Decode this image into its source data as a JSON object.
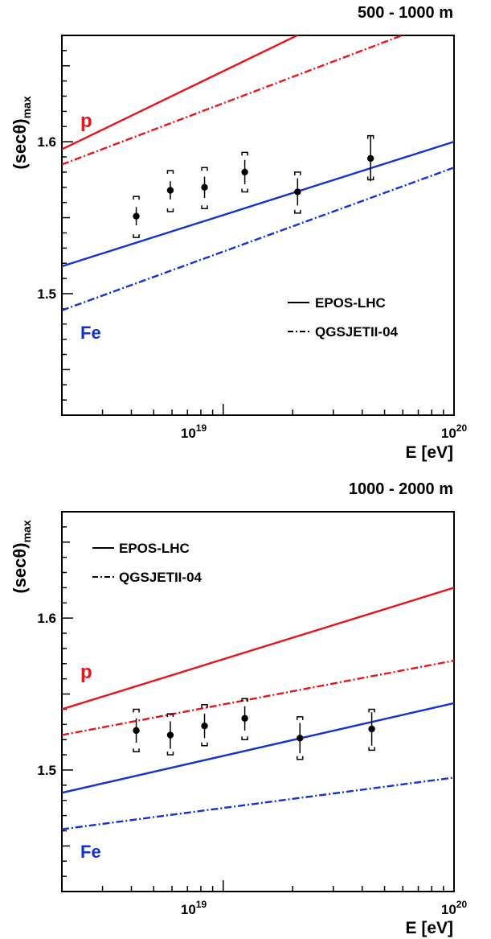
{
  "chart_data": [
    {
      "type": "line",
      "title": "500 - 1000 m",
      "xlabel": "E [eV]",
      "ylabel_main": "(secθ)",
      "ylabel_sub": "max",
      "x_scale": "log",
      "xlim": [
        2e+18,
        1e+20
      ],
      "ylim": [
        1.42,
        1.67
      ],
      "y_ticks": [
        {
          "value": 1.5,
          "label": "1.5"
        },
        {
          "value": 1.6,
          "label": "1.6"
        }
      ],
      "x_tick_labels": [
        {
          "value": 1e+19,
          "base": "10",
          "exp": "19"
        },
        {
          "value": 1e+20,
          "base": "10",
          "exp": "20"
        }
      ],
      "lines": [
        {
          "color": "#e8141c",
          "style": "solid",
          "x": [
            2e+18,
            1e+20
          ],
          "y": [
            1.595,
            1.72
          ]
        },
        {
          "color": "#e8141c",
          "style": "dashdot",
          "x": [
            2e+18,
            1e+20
          ],
          "y": [
            1.585,
            1.683
          ]
        },
        {
          "color": "#1432d2",
          "style": "solid",
          "x": [
            2e+18,
            1e+20
          ],
          "y": [
            1.518,
            1.6
          ]
        },
        {
          "color": "#1432d2",
          "style": "dashdot",
          "x": [
            2e+18,
            1e+20
          ],
          "y": [
            1.489,
            1.583
          ]
        }
      ],
      "points": [
        {
          "x": 4.2e+18,
          "y": 1.551,
          "stat": 0.006,
          "sys_lo": 1.537,
          "sys_hi": 1.564
        },
        {
          "x": 5.9e+18,
          "y": 1.568,
          "stat": 0.006,
          "sys_lo": 1.554,
          "sys_hi": 1.581
        },
        {
          "x": 8.3e+18,
          "y": 1.57,
          "stat": 0.007,
          "sys_lo": 1.556,
          "sys_hi": 1.583
        },
        {
          "x": 1.24e+19,
          "y": 1.58,
          "stat": 0.008,
          "sys_lo": 1.567,
          "sys_hi": 1.593
        },
        {
          "x": 2.1e+19,
          "y": 1.567,
          "stat": 0.009,
          "sys_lo": 1.553,
          "sys_hi": 1.58
        },
        {
          "x": 4.35e+19,
          "y": 1.589,
          "stat": 0.015,
          "sys_lo": 1.575,
          "sys_hi": 1.604
        }
      ],
      "annotations": [
        {
          "text": "p",
          "color": "#e8141c"
        },
        {
          "text": "Fe",
          "color": "#1432d2"
        }
      ],
      "legend": {
        "position": "bottom-right",
        "items": [
          {
            "label": "EPOS-LHC",
            "style": "solid"
          },
          {
            "label": "QGSJETII-04",
            "style": "dashdot"
          }
        ]
      }
    },
    {
      "type": "line",
      "title": "1000 - 2000 m",
      "xlabel": "E [eV]",
      "ylabel_main": "(secθ)",
      "ylabel_sub": "max",
      "x_scale": "log",
      "xlim": [
        2e+18,
        1e+20
      ],
      "ylim": [
        1.42,
        1.67
      ],
      "y_ticks": [
        {
          "value": 1.5,
          "label": "1.5"
        },
        {
          "value": 1.6,
          "label": "1.6"
        }
      ],
      "x_tick_labels": [
        {
          "value": 1e+19,
          "base": "10",
          "exp": "19"
        },
        {
          "value": 1e+20,
          "base": "10",
          "exp": "20"
        }
      ],
      "lines": [
        {
          "color": "#e8141c",
          "style": "solid",
          "x": [
            2e+18,
            1e+20
          ],
          "y": [
            1.54,
            1.62
          ]
        },
        {
          "color": "#e8141c",
          "style": "dashdot",
          "x": [
            2e+18,
            1e+20
          ],
          "y": [
            1.523,
            1.572
          ]
        },
        {
          "color": "#1432d2",
          "style": "solid",
          "x": [
            2e+18,
            1e+20
          ],
          "y": [
            1.485,
            1.544
          ]
        },
        {
          "color": "#1432d2",
          "style": "dashdot",
          "x": [
            2e+18,
            1e+20
          ],
          "y": [
            1.461,
            1.495
          ]
        }
      ],
      "points": [
        {
          "x": 4.2e+18,
          "y": 1.526,
          "stat": 0.008,
          "sys_lo": 1.512,
          "sys_hi": 1.54
        },
        {
          "x": 5.9e+18,
          "y": 1.523,
          "stat": 0.009,
          "sys_lo": 1.51,
          "sys_hi": 1.537
        },
        {
          "x": 8.3e+18,
          "y": 1.529,
          "stat": 0.008,
          "sys_lo": 1.516,
          "sys_hi": 1.543
        },
        {
          "x": 1.24e+19,
          "y": 1.534,
          "stat": 0.008,
          "sys_lo": 1.52,
          "sys_hi": 1.547
        },
        {
          "x": 2.15e+19,
          "y": 1.521,
          "stat": 0.01,
          "sys_lo": 1.507,
          "sys_hi": 1.535
        },
        {
          "x": 4.4e+19,
          "y": 1.527,
          "stat": 0.011,
          "sys_lo": 1.513,
          "sys_hi": 1.54
        }
      ],
      "annotations": [
        {
          "text": "p",
          "color": "#e8141c"
        },
        {
          "text": "Fe",
          "color": "#1432d2"
        }
      ],
      "legend": {
        "position": "top-left",
        "items": [
          {
            "label": "EPOS-LHC",
            "style": "solid"
          },
          {
            "label": "QGSJETII-04",
            "style": "dashdot"
          }
        ]
      }
    }
  ]
}
